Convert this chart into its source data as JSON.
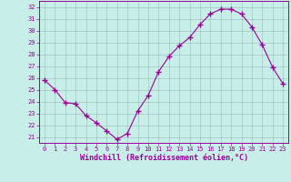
{
  "x": [
    0,
    1,
    2,
    3,
    4,
    5,
    6,
    7,
    8,
    9,
    10,
    11,
    12,
    13,
    14,
    15,
    16,
    17,
    18,
    19,
    20,
    21,
    22,
    23
  ],
  "y": [
    25.8,
    25.0,
    23.9,
    23.8,
    22.8,
    22.2,
    21.5,
    20.8,
    21.3,
    23.2,
    24.5,
    26.5,
    27.8,
    28.7,
    29.4,
    30.5,
    31.4,
    31.8,
    31.8,
    31.4,
    30.3,
    28.8,
    26.9,
    25.5
  ],
  "line_color": "#990099",
  "marker": "+",
  "marker_color": "#990099",
  "bg_color": "#C8EEE8",
  "grid_color": "#99BBBB",
  "axis_color": "#990099",
  "xlabel": "Windchill (Refroidissement éolien,°C)",
  "ylim": [
    20.5,
    32.5
  ],
  "xlim": [
    -0.5,
    23.5
  ],
  "yticks": [
    21,
    22,
    23,
    24,
    25,
    26,
    27,
    28,
    29,
    30,
    31,
    32
  ],
  "xticks": [
    0,
    1,
    2,
    3,
    4,
    5,
    6,
    7,
    8,
    9,
    10,
    11,
    12,
    13,
    14,
    15,
    16,
    17,
    18,
    19,
    20,
    21,
    22,
    23
  ]
}
